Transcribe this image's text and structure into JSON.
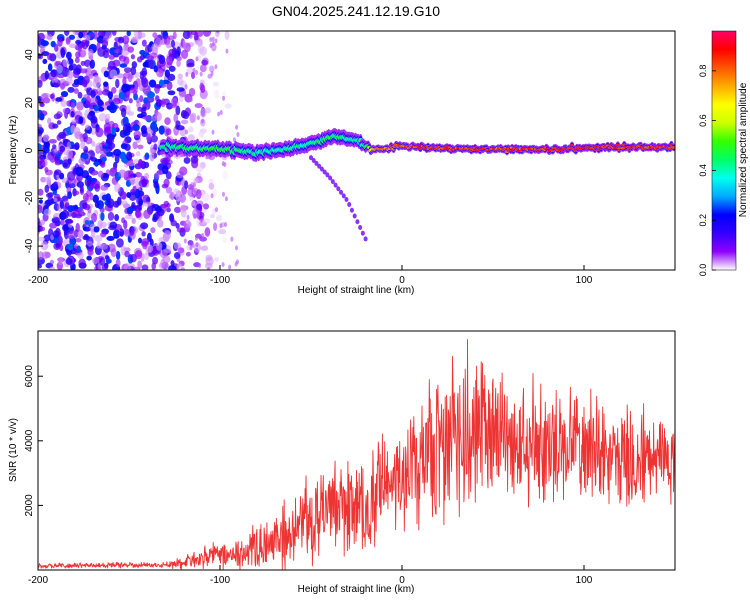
{
  "title": "GN04.2025.241.12.19.G10",
  "chart_data": [
    {
      "type": "heatmap",
      "xlabel": "Height of straight line (km)",
      "ylabel": "Frequency (Hz)",
      "xlim": [
        -200,
        150
      ],
      "ylim": [
        -50,
        50
      ],
      "x_ticks": [
        -200,
        -100,
        0,
        100
      ],
      "x_tick_labels": [
        "-200",
        "-100",
        "0",
        "100"
      ],
      "y_ticks": [
        -40,
        -20,
        0,
        20,
        40
      ],
      "y_tick_labels": [
        "-40",
        "-20",
        "0",
        "20",
        "40"
      ],
      "colorbar": {
        "label": "Normalized spectral amplitude",
        "range": [
          0,
          0.96
        ],
        "ticks": [
          0,
          0.2,
          0.4,
          0.6,
          0.8
        ],
        "tick_labels": [
          "0.0",
          "0.2",
          "0.4",
          "0.6",
          "0.8"
        ],
        "colors": [
          "#ffffff",
          "#8f00ff",
          "#3300ff",
          "#0000ff",
          "#00aaff",
          "#00ffee",
          "#00ff66",
          "#33ff00",
          "#ccff00",
          "#ffff00",
          "#ffaa00",
          "#ff5500",
          "#ff0000",
          "#ff0066"
        ]
      },
      "noise_region": {
        "x_range": [
          -200,
          -132
        ],
        "f_range": [
          -50,
          50
        ],
        "amplitude": 0.12
      },
      "signal_trace": {
        "x": [
          -132,
          -120,
          -110,
          -100,
          -90,
          -80,
          -70,
          -60,
          -50,
          -45,
          -40,
          -35,
          -30,
          -25,
          -20,
          -15,
          -10,
          0,
          10,
          20,
          40,
          60,
          80,
          100,
          120,
          140,
          150
        ],
        "frequency": [
          2,
          1,
          1,
          0.5,
          0,
          -1,
          0,
          1,
          3,
          4,
          5.5,
          6,
          5,
          4,
          2,
          0.5,
          0.5,
          2,
          1.5,
          1,
          0.5,
          0.5,
          0.5,
          1,
          1.5,
          1.5,
          1.5
        ],
        "bandwidth": [
          4,
          4,
          4,
          4,
          4,
          4,
          4,
          4,
          4,
          4,
          4,
          4,
          4,
          3.5,
          3,
          2,
          2,
          2,
          2,
          2,
          2,
          2,
          2,
          2,
          2,
          2,
          2
        ],
        "peak_amplitude": [
          0.45,
          0.5,
          0.5,
          0.5,
          0.5,
          0.45,
          0.45,
          0.45,
          0.45,
          0.5,
          0.5,
          0.5,
          0.45,
          0.45,
          0.5,
          0.8,
          0.85,
          0.9,
          0.92,
          0.92,
          0.93,
          0.92,
          0.93,
          0.93,
          0.93,
          0.93,
          0.93
        ]
      },
      "secondary_trace": {
        "x": [
          -50,
          -45,
          -40,
          -35,
          -30,
          -25,
          -20
        ],
        "frequency": [
          -3,
          -7,
          -11,
          -16,
          -21,
          -29,
          -37
        ]
      }
    },
    {
      "type": "line",
      "xlabel": "Height of straight line (km)",
      "ylabel": "SNR (10 * v/v)",
      "xlim": [
        -200,
        150
      ],
      "ylim": [
        0,
        7400
      ],
      "x_ticks": [
        -200,
        -100,
        0,
        100
      ],
      "x_tick_labels": [
        "-200",
        "-100",
        "0",
        "100"
      ],
      "y_ticks": [
        2000,
        4000,
        6000
      ],
      "y_tick_labels": [
        "2000",
        "4000",
        "6000"
      ],
      "color": "#ee3333",
      "series_envelope": {
        "x": [
          -200,
          -160,
          -140,
          -130,
          -120,
          -110,
          -100,
          -90,
          -80,
          -70,
          -60,
          -50,
          -40,
          -30,
          -20,
          -10,
          0,
          10,
          20,
          30,
          40,
          50,
          60,
          70,
          80,
          90,
          100,
          110,
          120,
          130,
          140,
          150
        ],
        "median": [
          120,
          150,
          150,
          150,
          200,
          350,
          450,
          550,
          700,
          900,
          1200,
          1600,
          1900,
          1900,
          1900,
          2600,
          2900,
          3500,
          3800,
          4100,
          4200,
          4200,
          4000,
          3900,
          3800,
          3800,
          3700,
          3700,
          3500,
          3500,
          3500,
          3400
        ],
        "spread": [
          100,
          100,
          100,
          100,
          250,
          400,
          500,
          650,
          800,
          1000,
          1400,
          1700,
          1600,
          1800,
          1900,
          1900,
          1900,
          2300,
          2700,
          3000,
          3100,
          2900,
          2600,
          2400,
          2200,
          2100,
          2000,
          1900,
          1800,
          1800,
          1700,
          1600
        ]
      }
    }
  ]
}
